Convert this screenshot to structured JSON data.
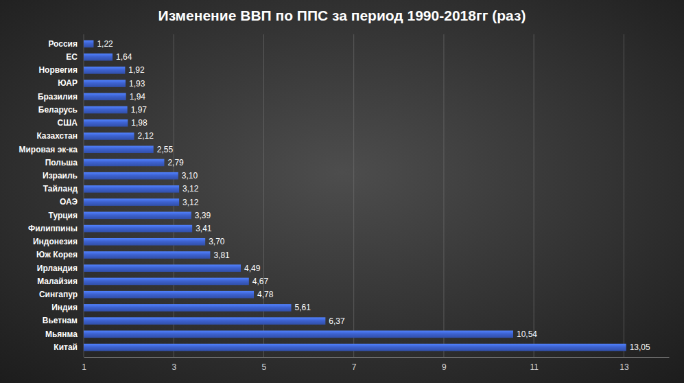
{
  "chart_data": {
    "type": "bar",
    "orientation": "horizontal",
    "title": "Изменение ВВП по ППС за период 1990-2018гг (раз)",
    "categories": [
      "Россия",
      "ЕС",
      "Норвегия",
      "ЮАР",
      "Бразилия",
      "Беларусь",
      "США",
      "Казахстан",
      "Мировая эк-ка",
      "Польша",
      "Израиль",
      "Тайланд",
      "ОАЭ",
      "Турция",
      "Филиппины",
      "Индонезия",
      "Юж Корея",
      "Ирландия",
      "Малайзия",
      "Сингапур",
      "Индия",
      "Вьетнам",
      "Мьянма",
      "Китай"
    ],
    "values": [
      1.22,
      1.64,
      1.92,
      1.93,
      1.94,
      1.97,
      1.98,
      2.12,
      2.55,
      2.79,
      3.1,
      3.12,
      3.12,
      3.39,
      3.41,
      3.7,
      3.81,
      4.49,
      4.67,
      4.78,
      5.61,
      6.37,
      10.54,
      13.05
    ],
    "value_labels": [
      "1,22",
      "1,64",
      "1,92",
      "1,93",
      "1,94",
      "1,97",
      "1,98",
      "2,12",
      "2,55",
      "2,79",
      "3,10",
      "3,12",
      "3,12",
      "3,39",
      "3,41",
      "3,70",
      "3,81",
      "4,49",
      "4,67",
      "4,78",
      "5,61",
      "6,37",
      "10,54",
      "13,05"
    ],
    "color": "#3d62d0",
    "xlim": [
      1,
      14
    ],
    "xticks": [
      1,
      3,
      5,
      7,
      9,
      11,
      13
    ],
    "grid": true,
    "data_labels": true
  }
}
